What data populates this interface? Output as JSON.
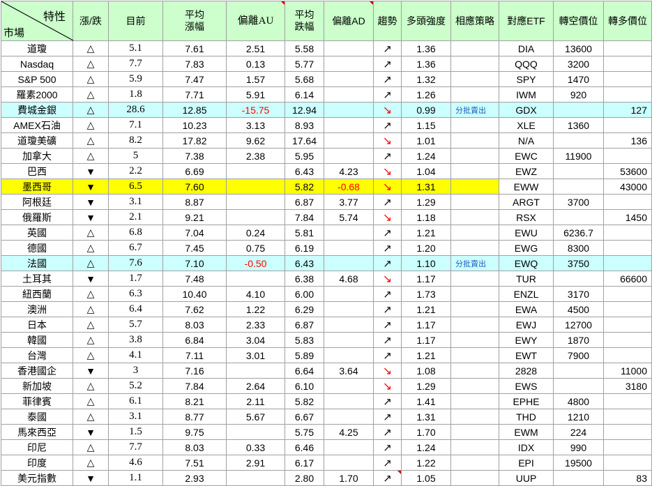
{
  "header": {
    "corner_top": "特性",
    "corner_bottom": "市場",
    "col_change": "漲/跌",
    "col_current": "目前",
    "col_avg_up": "平均\n漲幅",
    "col_dev_au": "偏離AU",
    "col_avg_down": "平均\n跌幅",
    "col_dev_ad": "偏離AD",
    "col_trend": "趨勢",
    "col_strength": "多頭強度",
    "col_strategy": "相應策略",
    "col_etf": "對應ETF",
    "col_short": "轉空價位",
    "col_long": "轉多價位"
  },
  "colors": {
    "header_bg": "#ccffcc",
    "cyan_highlight": "#ccffff",
    "yellow_highlight": "#ffff00",
    "negative": "#ff0000",
    "strategy_note": "#1f5fbf"
  },
  "icons": {
    "up_triangle": "△",
    "down_triangle": "▼",
    "trend_up": "↗",
    "trend_down": "↘"
  },
  "rows": [
    {
      "market": "道瓊",
      "dir": "up",
      "cur": "5.1",
      "avg_up": "7.61",
      "dev_au": "2.51",
      "avg_down": "5.58",
      "dev_ad": "",
      "trend": "up",
      "strength": "1.36",
      "strategy": "",
      "etf": "DIA",
      "short": "13600",
      "long": "",
      "hl": ""
    },
    {
      "market": "Nasdaq",
      "dir": "up",
      "cur": "7.7",
      "avg_up": "7.83",
      "dev_au": "0.13",
      "avg_down": "5.77",
      "dev_ad": "",
      "trend": "up",
      "strength": "1.36",
      "strategy": "",
      "etf": "QQQ",
      "short": "3200",
      "long": "",
      "hl": ""
    },
    {
      "market": "S&P 500",
      "dir": "up",
      "cur": "5.9",
      "avg_up": "7.47",
      "dev_au": "1.57",
      "avg_down": "5.68",
      "dev_ad": "",
      "trend": "up",
      "strength": "1.32",
      "strategy": "",
      "etf": "SPY",
      "short": "1470",
      "long": "",
      "hl": ""
    },
    {
      "market": "羅素2000",
      "dir": "up",
      "cur": "1.8",
      "avg_up": "7.71",
      "dev_au": "5.91",
      "avg_down": "6.14",
      "dev_ad": "",
      "trend": "up",
      "strength": "1.26",
      "strategy": "",
      "etf": "IWM",
      "short": "920",
      "long": "",
      "hl": ""
    },
    {
      "market": "費城金銀",
      "dir": "up",
      "cur": "28.6",
      "avg_up": "12.85",
      "dev_au": "-15.75",
      "avg_down": "12.94",
      "dev_ad": "",
      "trend": "down",
      "strength": "0.99",
      "strategy": "分批賣出",
      "etf": "GDX",
      "short": "",
      "long": "127",
      "hl": "cyan"
    },
    {
      "market": "AMEX石油",
      "dir": "up",
      "cur": "7.1",
      "avg_up": "10.23",
      "dev_au": "3.13",
      "avg_down": "8.93",
      "dev_ad": "",
      "trend": "up",
      "strength": "1.15",
      "strategy": "",
      "etf": "XLE",
      "short": "1360",
      "long": "",
      "hl": ""
    },
    {
      "market": "道瓊美礦",
      "dir": "up",
      "cur": "8.2",
      "avg_up": "17.82",
      "dev_au": "9.62",
      "avg_down": "17.64",
      "dev_ad": "",
      "trend": "down",
      "strength": "1.01",
      "strategy": "",
      "etf": "N/A",
      "short": "",
      "long": "136",
      "hl": ""
    },
    {
      "market": "加拿大",
      "dir": "up",
      "cur": "5",
      "avg_up": "7.38",
      "dev_au": "2.38",
      "avg_down": "5.95",
      "dev_ad": "",
      "trend": "up",
      "strength": "1.24",
      "strategy": "",
      "etf": "EWC",
      "short": "11900",
      "long": "",
      "hl": ""
    },
    {
      "market": "巴西",
      "dir": "down",
      "cur": "2.2",
      "avg_up": "6.69",
      "dev_au": "",
      "avg_down": "6.43",
      "dev_ad": "4.23",
      "trend": "down",
      "strength": "1.04",
      "strategy": "",
      "etf": "EWZ",
      "short": "",
      "long": "53600",
      "hl": ""
    },
    {
      "market": "墨西哥",
      "dir": "down",
      "cur": "6.5",
      "avg_up": "7.60",
      "dev_au": "",
      "avg_down": "5.82",
      "dev_ad": "-0.68",
      "trend": "down",
      "strength": "1.31",
      "strategy": "",
      "etf": "EWW",
      "short": "",
      "long": "43000",
      "hl": "yellow"
    },
    {
      "market": "阿根廷",
      "dir": "down",
      "cur": "3.1",
      "avg_up": "8.87",
      "dev_au": "",
      "avg_down": "6.87",
      "dev_ad": "3.77",
      "trend": "up",
      "strength": "1.29",
      "strategy": "",
      "etf": "ARGT",
      "short": "3700",
      "long": "",
      "hl": ""
    },
    {
      "market": "俄羅斯",
      "dir": "down",
      "cur": "2.1",
      "avg_up": "9.21",
      "dev_au": "",
      "avg_down": "7.84",
      "dev_ad": "5.74",
      "trend": "down",
      "strength": "1.18",
      "strategy": "",
      "etf": "RSX",
      "short": "",
      "long": "1450",
      "hl": ""
    },
    {
      "market": "英國",
      "dir": "up",
      "cur": "6.8",
      "avg_up": "7.04",
      "dev_au": "0.24",
      "avg_down": "5.81",
      "dev_ad": "",
      "trend": "up",
      "strength": "1.21",
      "strategy": "",
      "etf": "EWU",
      "short": "6236.7",
      "long": "",
      "hl": ""
    },
    {
      "market": "德國",
      "dir": "up",
      "cur": "6.7",
      "avg_up": "7.45",
      "dev_au": "0.75",
      "avg_down": "6.19",
      "dev_ad": "",
      "trend": "up",
      "strength": "1.20",
      "strategy": "",
      "etf": "EWG",
      "short": "8300",
      "long": "",
      "hl": ""
    },
    {
      "market": "法國",
      "dir": "up",
      "cur": "7.6",
      "avg_up": "7.10",
      "dev_au": "-0.50",
      "avg_down": "6.43",
      "dev_ad": "",
      "trend": "up",
      "strength": "1.10",
      "strategy": "分批賣出",
      "etf": "EWQ",
      "short": "3750",
      "long": "",
      "hl": "cyan"
    },
    {
      "market": "土耳其",
      "dir": "down",
      "cur": "1.7",
      "avg_up": "7.48",
      "dev_au": "",
      "avg_down": "6.38",
      "dev_ad": "4.68",
      "trend": "down",
      "strength": "1.17",
      "strategy": "",
      "etf": "TUR",
      "short": "",
      "long": "66600",
      "hl": ""
    },
    {
      "market": "紐西蘭",
      "dir": "up",
      "cur": "6.3",
      "avg_up": "10.40",
      "dev_au": "4.10",
      "avg_down": "6.00",
      "dev_ad": "",
      "trend": "up",
      "strength": "1.73",
      "strategy": "",
      "etf": "ENZL",
      "short": "3170",
      "long": "",
      "hl": ""
    },
    {
      "market": "澳洲",
      "dir": "up",
      "cur": "6.4",
      "avg_up": "7.62",
      "dev_au": "1.22",
      "avg_down": "6.29",
      "dev_ad": "",
      "trend": "up",
      "strength": "1.21",
      "strategy": "",
      "etf": "EWA",
      "short": "4500",
      "long": "",
      "hl": ""
    },
    {
      "market": "日本",
      "dir": "up",
      "cur": "5.7",
      "avg_up": "8.03",
      "dev_au": "2.33",
      "avg_down": "6.87",
      "dev_ad": "",
      "trend": "up",
      "strength": "1.17",
      "strategy": "",
      "etf": "EWJ",
      "short": "12700",
      "long": "",
      "hl": ""
    },
    {
      "market": "韓國",
      "dir": "up",
      "cur": "3.8",
      "avg_up": "6.84",
      "dev_au": "3.04",
      "avg_down": "5.83",
      "dev_ad": "",
      "trend": "up",
      "strength": "1.17",
      "strategy": "",
      "etf": "EWY",
      "short": "1870",
      "long": "",
      "hl": ""
    },
    {
      "market": "台灣",
      "dir": "up",
      "cur": "4.1",
      "avg_up": "7.11",
      "dev_au": "3.01",
      "avg_down": "5.89",
      "dev_ad": "",
      "trend": "up",
      "strength": "1.21",
      "strategy": "",
      "etf": "EWT",
      "short": "7900",
      "long": "",
      "hl": ""
    },
    {
      "market": "香港國企",
      "dir": "down",
      "cur": "3",
      "avg_up": "7.16",
      "dev_au": "",
      "avg_down": "6.64",
      "dev_ad": "3.64",
      "trend": "down",
      "strength": "1.08",
      "strategy": "",
      "etf": "2828",
      "short": "",
      "long": "11000",
      "hl": ""
    },
    {
      "market": "新加坡",
      "dir": "up",
      "cur": "5.2",
      "avg_up": "7.84",
      "dev_au": "2.64",
      "avg_down": "6.10",
      "dev_ad": "",
      "trend": "down",
      "strength": "1.29",
      "strategy": "",
      "etf": "EWS",
      "short": "",
      "long": "3180",
      "hl": ""
    },
    {
      "market": "菲律賓",
      "dir": "up",
      "cur": "6.1",
      "avg_up": "8.21",
      "dev_au": "2.11",
      "avg_down": "5.82",
      "dev_ad": "",
      "trend": "up",
      "strength": "1.41",
      "strategy": "",
      "etf": "EPHE",
      "short": "4800",
      "long": "",
      "hl": ""
    },
    {
      "market": "泰國",
      "dir": "up",
      "cur": "3.1",
      "avg_up": "8.77",
      "dev_au": "5.67",
      "avg_down": "6.67",
      "dev_ad": "",
      "trend": "up",
      "strength": "1.31",
      "strategy": "",
      "etf": "THD",
      "short": "1210",
      "long": "",
      "hl": ""
    },
    {
      "market": "馬來西亞",
      "dir": "down",
      "cur": "1.5",
      "avg_up": "9.75",
      "dev_au": "",
      "avg_down": "5.75",
      "dev_ad": "4.25",
      "trend": "up",
      "strength": "1.70",
      "strategy": "",
      "etf": "EWM",
      "short": "224",
      "long": "",
      "hl": ""
    },
    {
      "market": "印尼",
      "dir": "up",
      "cur": "7.7",
      "avg_up": "8.03",
      "dev_au": "0.33",
      "avg_down": "6.46",
      "dev_ad": "",
      "trend": "up",
      "strength": "1.24",
      "strategy": "",
      "etf": "IDX",
      "short": "990",
      "long": "",
      "hl": ""
    },
    {
      "market": "印度",
      "dir": "up",
      "cur": "4.6",
      "avg_up": "7.51",
      "dev_au": "2.91",
      "avg_down": "6.17",
      "dev_ad": "",
      "trend": "up",
      "strength": "1.22",
      "strategy": "",
      "etf": "EPI",
      "short": "19500",
      "long": "",
      "hl": ""
    },
    {
      "market": "美元指數",
      "dir": "down",
      "cur": "1.1",
      "avg_up": "2.93",
      "dev_au": "",
      "avg_down": "2.80",
      "dev_ad": "1.70",
      "trend": "up",
      "strength": "1.05",
      "strategy": "",
      "etf": "UUP",
      "short": "",
      "long": "83",
      "hl": ""
    }
  ]
}
